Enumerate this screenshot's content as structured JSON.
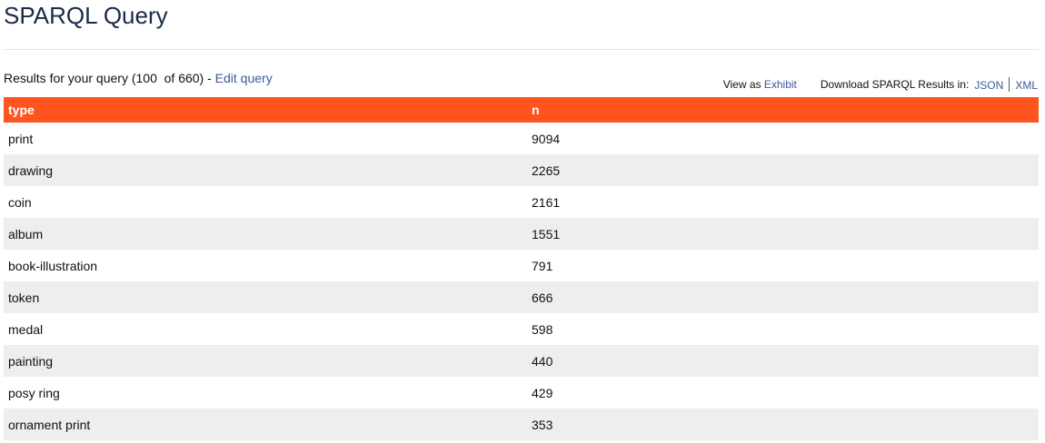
{
  "title": "SPARQL Query",
  "results": {
    "text": "Results for your query (100  of 660) - ",
    "edit": "Edit query"
  },
  "view": {
    "label": "View as ",
    "link": "Exhibit"
  },
  "download": {
    "label": "Download SPARQL Results in:",
    "json": "JSON",
    "xml": "XML"
  },
  "table": {
    "columns": [
      "type",
      "n"
    ],
    "rows": [
      [
        "print",
        "9094"
      ],
      [
        "drawing",
        "2265"
      ],
      [
        "coin",
        "2161"
      ],
      [
        "album",
        "1551"
      ],
      [
        "book-illustration",
        "791"
      ],
      [
        "token",
        "666"
      ],
      [
        "medal",
        "598"
      ],
      [
        "painting",
        "440"
      ],
      [
        "posy ring",
        "429"
      ],
      [
        "ornament print",
        "353"
      ]
    ]
  },
  "colors": {
    "header": "#ff541e",
    "link": "#3b5998"
  }
}
